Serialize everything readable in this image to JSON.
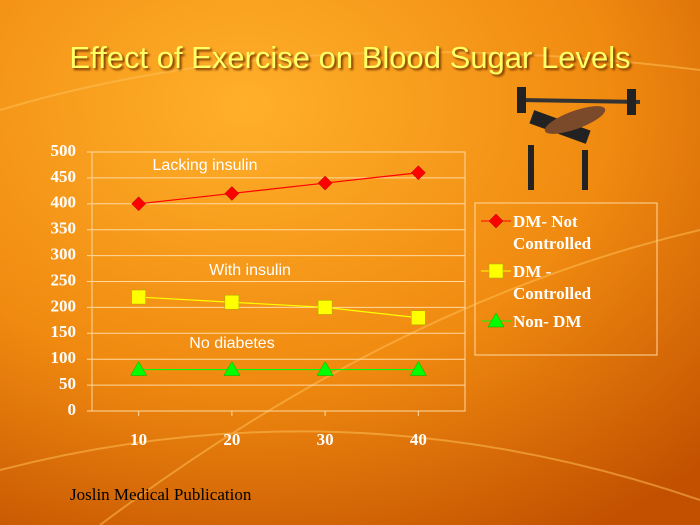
{
  "chart_data": {
    "type": "line",
    "title": "Effect of Exercise on Blood Sugar Levels",
    "x": [
      10,
      20,
      30,
      40
    ],
    "xlim": [
      5,
      45
    ],
    "xticks": [
      10,
      20,
      30,
      40
    ],
    "ylim": [
      0,
      500
    ],
    "yticks": [
      0,
      50,
      100,
      150,
      200,
      250,
      300,
      350,
      400,
      450,
      500
    ],
    "grid": true,
    "legend": "right",
    "series": [
      {
        "name": "DM- Not Controlled",
        "color": "#ff0000",
        "marker": "diamond",
        "values": [
          400,
          420,
          440,
          460
        ]
      },
      {
        "name": "DM - Controlled",
        "color": "#ffff00",
        "marker": "square",
        "values": [
          220,
          210,
          200,
          180
        ]
      },
      {
        "name": "Non- DM",
        "color": "#00ff00",
        "marker": "triangle",
        "values": [
          80,
          80,
          80,
          80
        ]
      }
    ],
    "annotations": [
      "Lacking insulin",
      "With insulin",
      "No diabetes"
    ],
    "source": "Joslin Medical Publication"
  }
}
